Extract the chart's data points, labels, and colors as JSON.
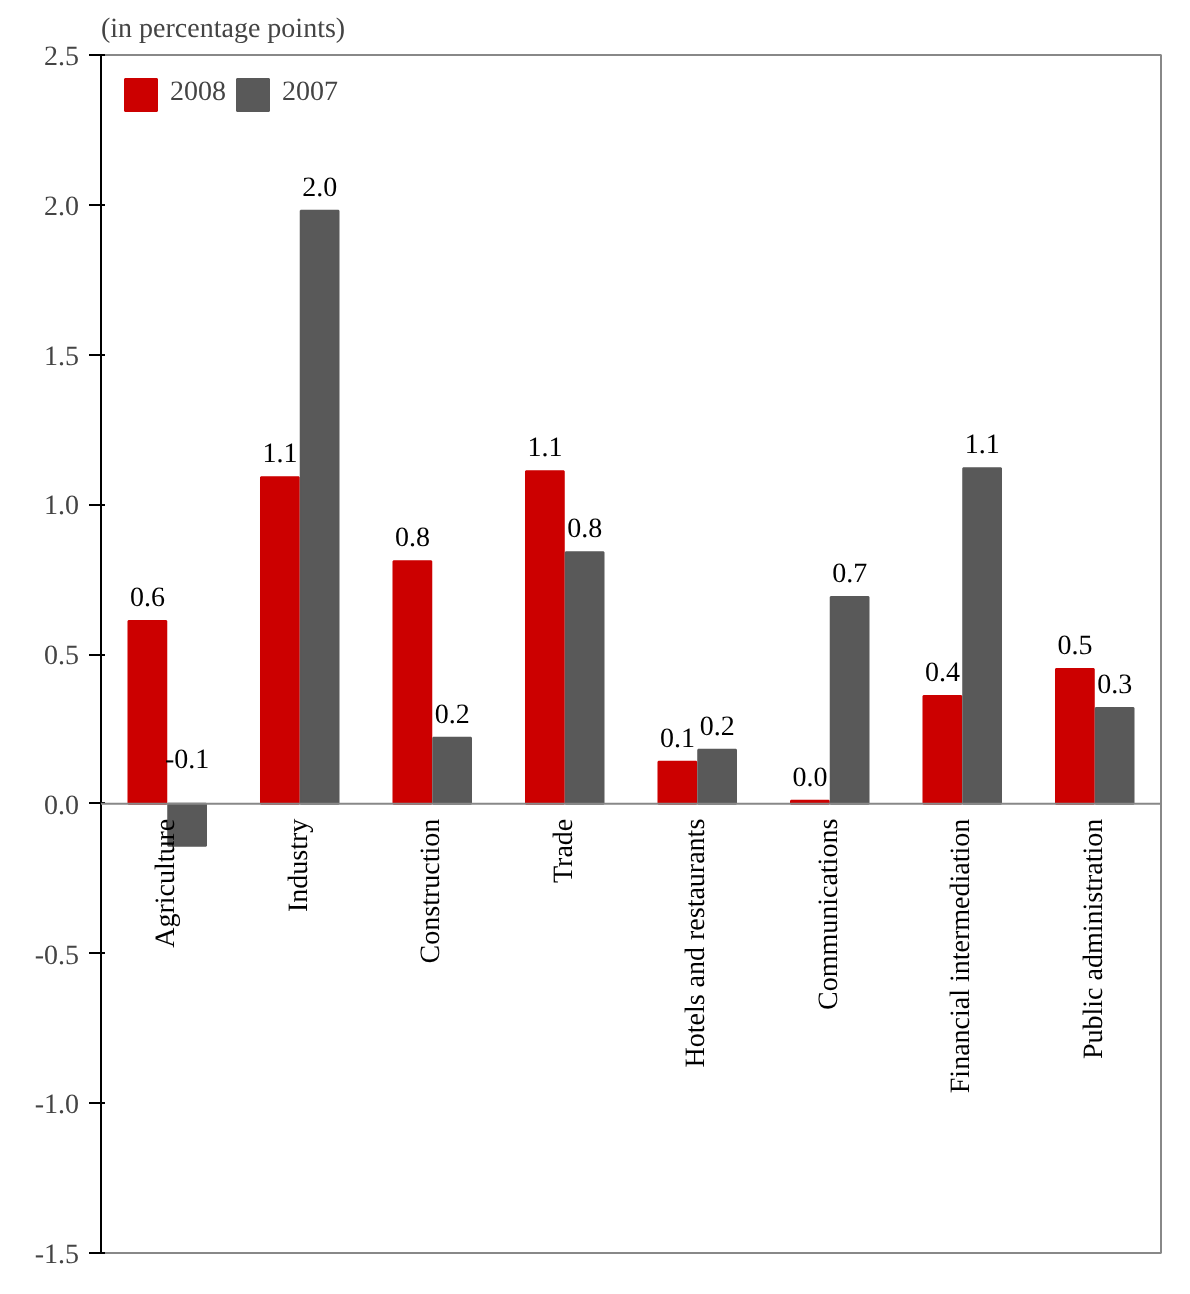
{
  "chart_data": {
    "type": "bar",
    "title": "(in percentage points)",
    "categories": [
      "Agriculture",
      "Industry",
      "Construction",
      "Trade",
      "Hotels and restaurants",
      "Communications",
      "Financial intermediation",
      "Public administration"
    ],
    "series": [
      {
        "name": "2008",
        "color": "#cc0000",
        "values": [
          0.61,
          1.09,
          0.81,
          1.11,
          0.14,
          0.01,
          0.36,
          0.45
        ],
        "value_labels": [
          "0.6",
          "1.1",
          "0.8",
          "1.1",
          "0.1",
          "0.0",
          "0.4",
          "0.5"
        ]
      },
      {
        "name": "2007",
        "color": "#595959",
        "values": [
          -0.14,
          1.98,
          0.22,
          0.84,
          0.18,
          0.69,
          1.12,
          0.32
        ],
        "value_labels": [
          "-0.1",
          "2.0",
          "0.2",
          "0.8",
          "0.2",
          "0.7",
          "1.1",
          "0.3"
        ]
      }
    ],
    "ylim": [
      -1.5,
      2.5
    ],
    "yticks": [
      {
        "value": -1.5,
        "label": "-1.5"
      },
      {
        "value": -1.0,
        "label": "-1.0"
      },
      {
        "value": -0.5,
        "label": "-0.5"
      },
      {
        "value": 0,
        "label": "0.0"
      },
      {
        "value": 0.5,
        "label": "0.5"
      },
      {
        "value": 1.0,
        "label": "1.0"
      },
      {
        "value": 1.5,
        "label": "1.5"
      },
      {
        "value": 2.0,
        "label": "2.0"
      },
      {
        "value": 2.5,
        "label": "2.5"
      }
    ],
    "grid": false,
    "legend": "top left"
  }
}
